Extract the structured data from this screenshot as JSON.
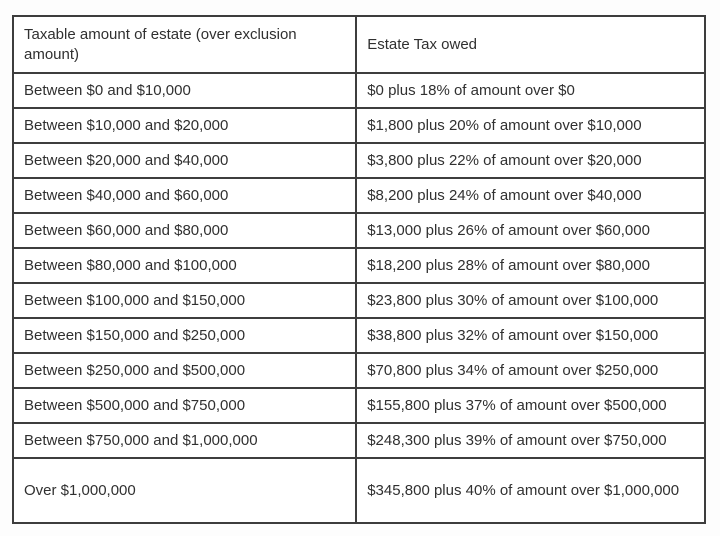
{
  "table": {
    "headers": [
      "Taxable amount of estate (over exclusion amount)",
      "Estate Tax owed"
    ],
    "rows": [
      [
        "Between $0 and $10,000",
        "$0 plus 18% of amount over $0"
      ],
      [
        "Between $10,000 and $20,000",
        "$1,800 plus 20% of amount over $10,000"
      ],
      [
        "Between $20,000 and $40,000",
        "$3,800 plus 22% of amount over $20,000"
      ],
      [
        "Between $40,000 and $60,000",
        "$8,200 plus 24% of amount over $40,000"
      ],
      [
        "Between $60,000 and $80,000",
        "$13,000 plus 26% of amount over $60,000"
      ],
      [
        "Between $80,000 and $100,000",
        "$18,200 plus 28% of amount over $80,000"
      ],
      [
        "Between $100,000 and $150,000",
        "$23,800 plus 30% of amount over $100,000"
      ],
      [
        "Between $150,000 and $250,000",
        "$38,800 plus 32% of amount over $150,000"
      ],
      [
        "Between $250,000 and $500,000",
        "$70,800 plus 34% of amount over $250,000"
      ],
      [
        "Between $500,000 and $750,000",
        "$155,800 plus 37% of amount over $500,000"
      ],
      [
        "Between $750,000 and $1,000,000",
        "$248,300 plus 39% of amount over $750,000"
      ],
      [
        "Over $1,000,000",
        "$345,800 plus 40% of amount over $1,000,000"
      ]
    ],
    "colors": {
      "border": "#3d3d3d",
      "text": "#303030",
      "background": "#ffffff"
    }
  }
}
